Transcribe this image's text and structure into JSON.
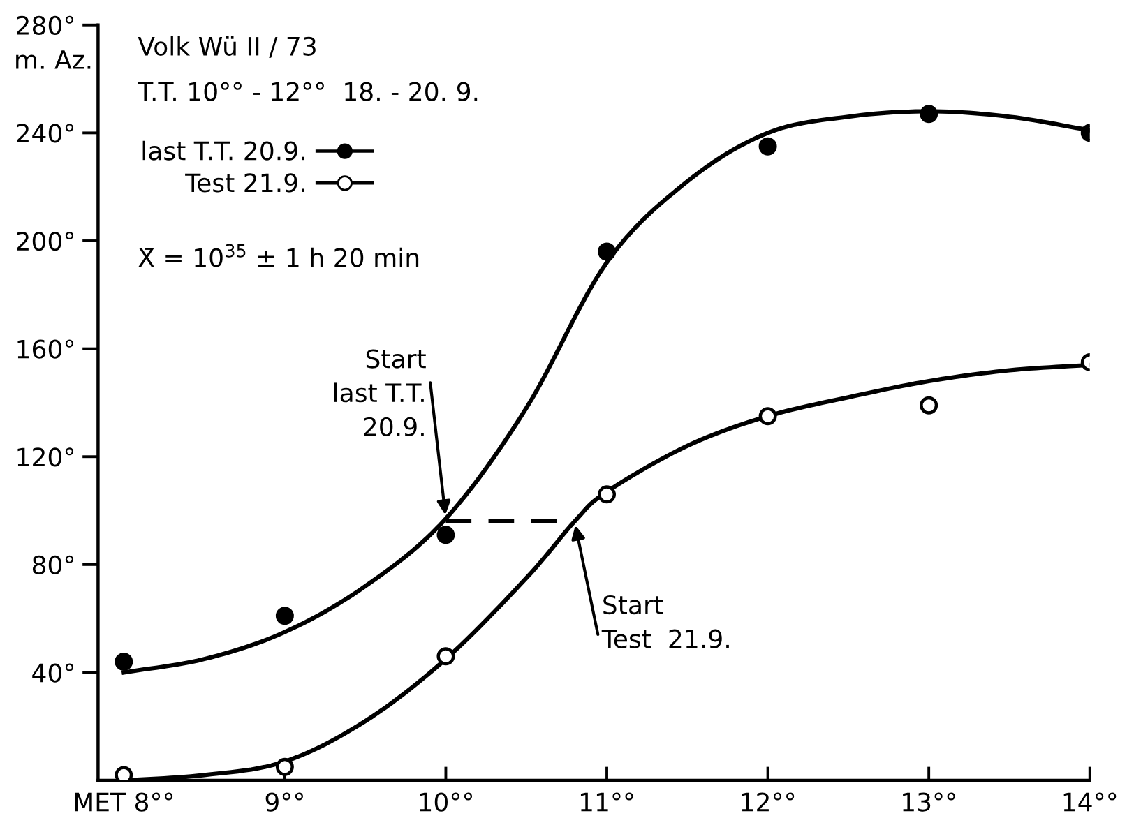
{
  "chart_data": {
    "type": "scatter",
    "title": "Volk Wü II / 73",
    "subtitle": "T.T. 10°° - 12°°  18. - 20. 9.",
    "ylabel": "m. Az.",
    "xlim": [
      7.84,
      14.0
    ],
    "xticks": [
      {
        "value": 8,
        "label": "MET 8°°"
      },
      {
        "value": 9,
        "label": "9°°"
      },
      {
        "value": 10,
        "label": "10°°"
      },
      {
        "value": 11,
        "label": "11°°"
      },
      {
        "value": 12,
        "label": "12°°"
      },
      {
        "value": 13,
        "label": "13°°"
      },
      {
        "value": 14,
        "label": "14°°"
      }
    ],
    "ylim": [
      0,
      280
    ],
    "yticks": [
      {
        "value": 40,
        "label": "40°"
      },
      {
        "value": 80,
        "label": "80°"
      },
      {
        "value": 120,
        "label": "120°"
      },
      {
        "value": 160,
        "label": "160°"
      },
      {
        "value": 200,
        "label": "200°"
      },
      {
        "value": 240,
        "label": "240°"
      },
      {
        "value": 280,
        "label": "280°"
      }
    ],
    "x": [
      8,
      9,
      10,
      11,
      12,
      13,
      14
    ],
    "series": [
      {
        "name": "last T.T. 20.9.",
        "color": "#000000",
        "marker": "circle",
        "values": [
          44,
          61,
          91,
          196,
          235,
          247,
          240
        ]
      },
      {
        "name": "Test 21.9.",
        "color": "#ffffff",
        "marker": "circle",
        "values": [
          2,
          5,
          46,
          106,
          135,
          139,
          155
        ]
      },
      {
        "type": "line",
        "color": "#000000",
        "line_style": "solid",
        "x": [
          8.0,
          8.5,
          9.0,
          9.5,
          10.0,
          10.5,
          11.0,
          11.5,
          12.0,
          12.5,
          13.0,
          13.5,
          14.0
        ],
        "values": [
          40,
          45,
          55,
          72,
          97,
          138,
          192,
          222,
          240,
          246,
          248,
          246,
          241
        ]
      },
      {
        "type": "line",
        "color": "#000000",
        "line_style": "solid",
        "x": [
          8.0,
          8.5,
          9.0,
          9.5,
          10.0,
          10.5,
          10.8,
          11.0,
          11.5,
          12.0,
          12.5,
          13.0,
          13.5,
          14.0
        ],
        "values": [
          0,
          2,
          7,
          22,
          45,
          75,
          96,
          107,
          124,
          135,
          142,
          148,
          152,
          154
        ]
      },
      {
        "type": "line",
        "color": "#000000",
        "line_style": "dashed",
        "x": [
          10.0,
          10.8
        ],
        "values": [
          96,
          96
        ]
      }
    ],
    "annotations": [
      {
        "text": "Start\nlast T.T.\n20.9.",
        "x": 10,
        "y": 97
      },
      {
        "text": "Start\nTest  21.9.",
        "x": 10.8,
        "y": 96
      },
      "X̄ = 10$^{35}$ ± 1 h 20 min"
    ],
    "legend": "top left",
    "grid": false
  }
}
